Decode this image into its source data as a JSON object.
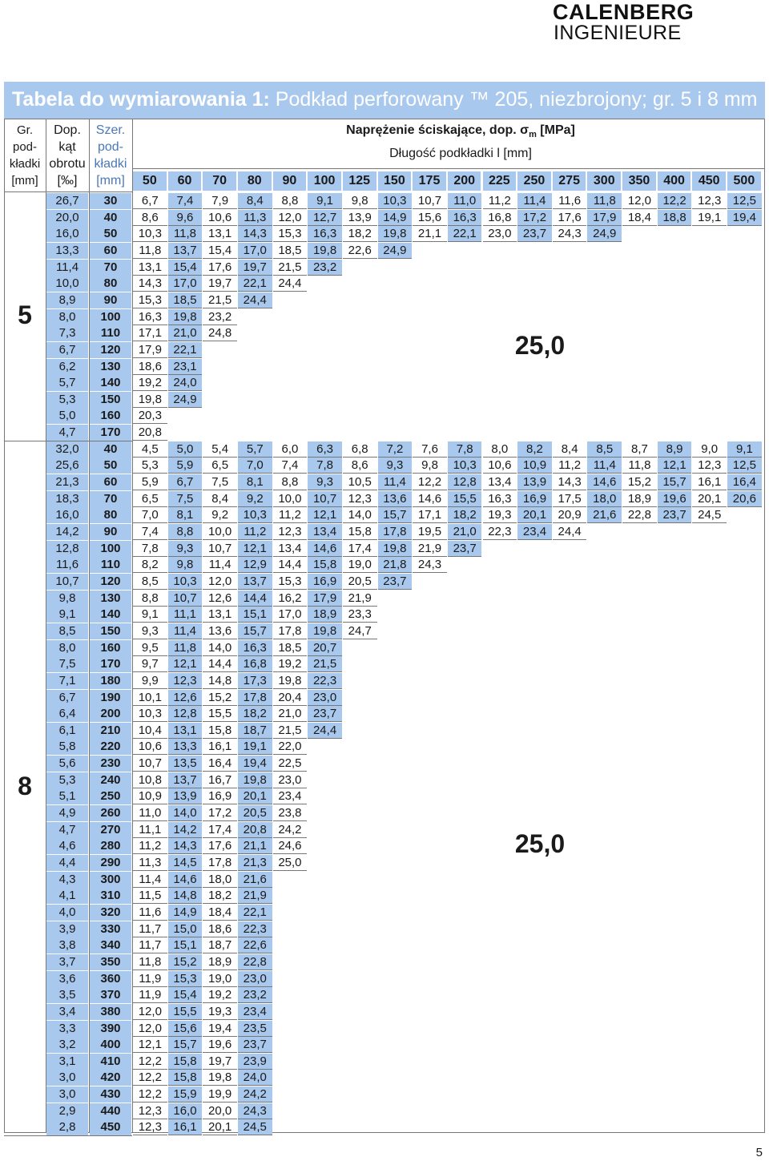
{
  "logo": {
    "line1": "CALENBERG",
    "line2": "INGENIEURE"
  },
  "title": {
    "bold": "Tabela do wymiarowania 1:",
    "rest": " Podkład perforowany ™ 205, niezbrojony; gr. 5 i 8 mm"
  },
  "header": {
    "thickness": [
      "Gr.",
      "pod-",
      "kładki",
      "[mm]"
    ],
    "angle": [
      "Dop.",
      "kąt",
      "obrotu",
      "[‰]"
    ],
    "width": [
      "Szer.",
      "pod-",
      "kładki",
      "[mm]"
    ],
    "stress": "Naprężenie ściskające, dop. σ",
    "stress_sub": "m",
    "stress_unit": " [MPa]",
    "length": "Długość podkładki l [mm]",
    "lengths": [
      "50",
      "60",
      "70",
      "80",
      "90",
      "100",
      "125",
      "150",
      "175",
      "200",
      "225",
      "250",
      "275",
      "300",
      "350",
      "400",
      "450",
      "500"
    ]
  },
  "groups": [
    {
      "thickness": "5",
      "max_value": "25,0",
      "rows": [
        {
          "angle": "26,7",
          "width": "30",
          "values": [
            "6,7",
            "7,4",
            "7,9",
            "8,4",
            "8,8",
            "9,1",
            "9,8",
            "10,3",
            "10,7",
            "11,0",
            "11,2",
            "11,4",
            "11,6",
            "11,8",
            "12,0",
            "12,2",
            "12,3",
            "12,5"
          ]
        },
        {
          "angle": "20,0",
          "width": "40",
          "values": [
            "8,6",
            "9,6",
            "10,6",
            "11,3",
            "12,0",
            "12,7",
            "13,9",
            "14,9",
            "15,6",
            "16,3",
            "16,8",
            "17,2",
            "17,6",
            "17,9",
            "18,4",
            "18,8",
            "19,1",
            "19,4"
          ]
        },
        {
          "angle": "16,0",
          "width": "50",
          "values": [
            "10,3",
            "11,8",
            "13,1",
            "14,3",
            "15,3",
            "16,3",
            "18,2",
            "19,8",
            "21,1",
            "22,1",
            "23,0",
            "23,7",
            "24,3",
            "24,9"
          ]
        },
        {
          "angle": "13,3",
          "width": "60",
          "values": [
            "11,8",
            "13,7",
            "15,4",
            "17,0",
            "18,5",
            "19,8",
            "22,6",
            "24,9"
          ]
        },
        {
          "angle": "11,4",
          "width": "70",
          "values": [
            "13,1",
            "15,4",
            "17,6",
            "19,7",
            "21,5",
            "23,2"
          ]
        },
        {
          "angle": "10,0",
          "width": "80",
          "values": [
            "14,3",
            "17,0",
            "19,7",
            "22,1",
            "24,4"
          ]
        },
        {
          "angle": "8,9",
          "width": "90",
          "values": [
            "15,3",
            "18,5",
            "21,5",
            "24,4"
          ]
        },
        {
          "angle": "8,0",
          "width": "100",
          "values": [
            "16,3",
            "19,8",
            "23,2"
          ]
        },
        {
          "angle": "7,3",
          "width": "110",
          "values": [
            "17,1",
            "21,0",
            "24,8"
          ]
        },
        {
          "angle": "6,7",
          "width": "120",
          "values": [
            "17,9",
            "22,1"
          ]
        },
        {
          "angle": "6,2",
          "width": "130",
          "values": [
            "18,6",
            "23,1"
          ]
        },
        {
          "angle": "5,7",
          "width": "140",
          "values": [
            "19,2",
            "24,0"
          ]
        },
        {
          "angle": "5,3",
          "width": "150",
          "values": [
            "19,8",
            "24,9"
          ]
        },
        {
          "angle": "5,0",
          "width": "160",
          "values": [
            "20,3"
          ]
        },
        {
          "angle": "4,7",
          "width": "170",
          "values": [
            "20,8"
          ]
        }
      ]
    },
    {
      "thickness": "8",
      "max_value": "25,0",
      "rows": [
        {
          "angle": "32,0",
          "width": "40",
          "values": [
            "4,5",
            "5,0",
            "5,4",
            "5,7",
            "6,0",
            "6,3",
            "6,8",
            "7,2",
            "7,6",
            "7,8",
            "8,0",
            "8,2",
            "8,4",
            "8,5",
            "8,7",
            "8,9",
            "9,0",
            "9,1"
          ]
        },
        {
          "angle": "25,6",
          "width": "50",
          "values": [
            "5,3",
            "5,9",
            "6,5",
            "7,0",
            "7,4",
            "7,8",
            "8,6",
            "9,3",
            "9,8",
            "10,3",
            "10,6",
            "10,9",
            "11,2",
            "11,4",
            "11,8",
            "12,1",
            "12,3",
            "12,5"
          ]
        },
        {
          "angle": "21,3",
          "width": "60",
          "values": [
            "5,9",
            "6,7",
            "7,5",
            "8,1",
            "8,8",
            "9,3",
            "10,5",
            "11,4",
            "12,2",
            "12,8",
            "13,4",
            "13,9",
            "14,3",
            "14,6",
            "15,2",
            "15,7",
            "16,1",
            "16,4"
          ]
        },
        {
          "angle": "18,3",
          "width": "70",
          "values": [
            "6,5",
            "7,5",
            "8,4",
            "9,2",
            "10,0",
            "10,7",
            "12,3",
            "13,6",
            "14,6",
            "15,5",
            "16,3",
            "16,9",
            "17,5",
            "18,0",
            "18,9",
            "19,6",
            "20,1",
            "20,6"
          ]
        },
        {
          "angle": "16,0",
          "width": "80",
          "values": [
            "7,0",
            "8,1",
            "9,2",
            "10,3",
            "11,2",
            "12,1",
            "14,0",
            "15,7",
            "17,1",
            "18,2",
            "19,3",
            "20,1",
            "20,9",
            "21,6",
            "22,8",
            "23,7",
            "24,5"
          ]
        },
        {
          "angle": "14,2",
          "width": "90",
          "values": [
            "7,4",
            "8,8",
            "10,0",
            "11,2",
            "12,3",
            "13,4",
            "15,8",
            "17,8",
            "19,5",
            "21,0",
            "22,3",
            "23,4",
            "24,4"
          ]
        },
        {
          "angle": "12,8",
          "width": "100",
          "values": [
            "7,8",
            "9,3",
            "10,7",
            "12,1",
            "13,4",
            "14,6",
            "17,4",
            "19,8",
            "21,9",
            "23,7"
          ]
        },
        {
          "angle": "11,6",
          "width": "110",
          "values": [
            "8,2",
            "9,8",
            "11,4",
            "12,9",
            "14,4",
            "15,8",
            "19,0",
            "21,8",
            "24,3"
          ]
        },
        {
          "angle": "10,7",
          "width": "120",
          "values": [
            "8,5",
            "10,3",
            "12,0",
            "13,7",
            "15,3",
            "16,9",
            "20,5",
            "23,7"
          ]
        },
        {
          "angle": "9,8",
          "width": "130",
          "values": [
            "8,8",
            "10,7",
            "12,6",
            "14,4",
            "16,2",
            "17,9",
            "21,9"
          ]
        },
        {
          "angle": "9,1",
          "width": "140",
          "values": [
            "9,1",
            "11,1",
            "13,1",
            "15,1",
            "17,0",
            "18,9",
            "23,3"
          ]
        },
        {
          "angle": "8,5",
          "width": "150",
          "values": [
            "9,3",
            "11,4",
            "13,6",
            "15,7",
            "17,8",
            "19,8",
            "24,7"
          ]
        },
        {
          "angle": "8,0",
          "width": "160",
          "values": [
            "9,5",
            "11,8",
            "14,0",
            "16,3",
            "18,5",
            "20,7"
          ]
        },
        {
          "angle": "7,5",
          "width": "170",
          "values": [
            "9,7",
            "12,1",
            "14,4",
            "16,8",
            "19,2",
            "21,5"
          ]
        },
        {
          "angle": "7,1",
          "width": "180",
          "values": [
            "9,9",
            "12,3",
            "14,8",
            "17,3",
            "19,8",
            "22,3"
          ]
        },
        {
          "angle": "6,7",
          "width": "190",
          "values": [
            "10,1",
            "12,6",
            "15,2",
            "17,8",
            "20,4",
            "23,0"
          ]
        },
        {
          "angle": "6,4",
          "width": "200",
          "values": [
            "10,3",
            "12,8",
            "15,5",
            "18,2",
            "21,0",
            "23,7"
          ]
        },
        {
          "angle": "6,1",
          "width": "210",
          "values": [
            "10,4",
            "13,1",
            "15,8",
            "18,7",
            "21,5",
            "24,4"
          ]
        },
        {
          "angle": "5,8",
          "width": "220",
          "values": [
            "10,6",
            "13,3",
            "16,1",
            "19,1",
            "22,0"
          ]
        },
        {
          "angle": "5,6",
          "width": "230",
          "values": [
            "10,7",
            "13,5",
            "16,4",
            "19,4",
            "22,5"
          ]
        },
        {
          "angle": "5,3",
          "width": "240",
          "values": [
            "10,8",
            "13,7",
            "16,7",
            "19,8",
            "23,0"
          ]
        },
        {
          "angle": "5,1",
          "width": "250",
          "values": [
            "10,9",
            "13,9",
            "16,9",
            "20,1",
            "23,4"
          ]
        },
        {
          "angle": "4,9",
          "width": "260",
          "values": [
            "11,0",
            "14,0",
            "17,2",
            "20,5",
            "23,8"
          ]
        },
        {
          "angle": "4,7",
          "width": "270",
          "values": [
            "11,1",
            "14,2",
            "17,4",
            "20,8",
            "24,2"
          ]
        },
        {
          "angle": "4,6",
          "width": "280",
          "values": [
            "11,2",
            "14,3",
            "17,6",
            "21,1",
            "24,6"
          ]
        },
        {
          "angle": "4,4",
          "width": "290",
          "values": [
            "11,3",
            "14,5",
            "17,8",
            "21,3",
            "25,0"
          ]
        },
        {
          "angle": "4,3",
          "width": "300",
          "values": [
            "11,4",
            "14,6",
            "18,0",
            "21,6"
          ]
        },
        {
          "angle": "4,1",
          "width": "310",
          "values": [
            "11,5",
            "14,8",
            "18,2",
            "21,9"
          ]
        },
        {
          "angle": "4,0",
          "width": "320",
          "values": [
            "11,6",
            "14,9",
            "18,4",
            "22,1"
          ]
        },
        {
          "angle": "3,9",
          "width": "330",
          "values": [
            "11,7",
            "15,0",
            "18,6",
            "22,3"
          ]
        },
        {
          "angle": "3,8",
          "width": "340",
          "values": [
            "11,7",
            "15,1",
            "18,7",
            "22,6"
          ]
        },
        {
          "angle": "3,7",
          "width": "350",
          "values": [
            "11,8",
            "15,2",
            "18,9",
            "22,8"
          ]
        },
        {
          "angle": "3,6",
          "width": "360",
          "values": [
            "11,9",
            "15,3",
            "19,0",
            "23,0"
          ]
        },
        {
          "angle": "3,5",
          "width": "370",
          "values": [
            "11,9",
            "15,4",
            "19,2",
            "23,2"
          ]
        },
        {
          "angle": "3,4",
          "width": "380",
          "values": [
            "12,0",
            "15,5",
            "19,3",
            "23,4"
          ]
        },
        {
          "angle": "3,3",
          "width": "390",
          "values": [
            "12,0",
            "15,6",
            "19,4",
            "23,5"
          ]
        },
        {
          "angle": "3,2",
          "width": "400",
          "values": [
            "12,1",
            "15,7",
            "19,6",
            "23,7"
          ]
        },
        {
          "angle": "3,1",
          "width": "410",
          "values": [
            "12,2",
            "15,8",
            "19,7",
            "23,9"
          ]
        },
        {
          "angle": "3,0",
          "width": "420",
          "values": [
            "12,2",
            "15,8",
            "19,8",
            "24,0"
          ]
        },
        {
          "angle": "3,0",
          "width": "430",
          "values": [
            "12,2",
            "15,9",
            "19,9",
            "24,2"
          ]
        },
        {
          "angle": "2,9",
          "width": "440",
          "values": [
            "12,3",
            "16,0",
            "20,0",
            "24,3"
          ]
        },
        {
          "angle": "2,8",
          "width": "450",
          "values": [
            "12,3",
            "16,1",
            "20,1",
            "24,5"
          ]
        }
      ]
    }
  ],
  "page_number": "5"
}
